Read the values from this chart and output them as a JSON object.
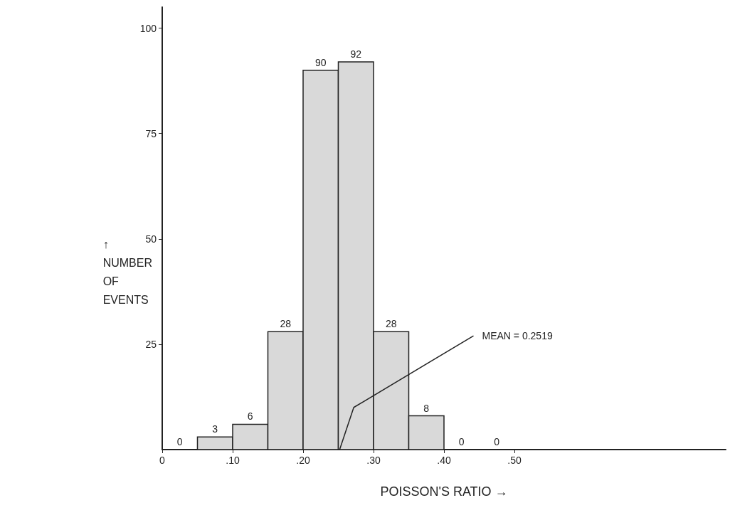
{
  "chart_data": {
    "type": "histogram",
    "xlabel": "POISSON'S RATIO →",
    "ylabel": "↑ NUMBER OF EVENTS",
    "bins": [
      0,
      0.05,
      0.1,
      0.15,
      0.2,
      0.25,
      0.3,
      0.35,
      0.4,
      0.45,
      0.5
    ],
    "values": [
      0,
      3,
      6,
      28,
      90,
      92,
      28,
      8,
      0,
      0
    ],
    "color": "#d9d9d9",
    "data_labels": true,
    "xlim": [
      0,
      0.8
    ],
    "xticks": [
      0,
      {
        "value": 0.1,
        "label": ".10"
      },
      {
        "value": 0.2,
        "label": ".20"
      },
      {
        "value": 0.3,
        "label": ".30"
      },
      {
        "value": 0.4,
        "label": ".40"
      },
      {
        "value": 0.5,
        "label": ".50"
      }
    ],
    "ylim": [
      0,
      105
    ],
    "yticks": [
      25,
      50,
      75,
      100
    ],
    "annotations": [
      {
        "text": "MEAN = 0.2519",
        "x": 0.2519,
        "y": 0
      }
    ],
    "grid": false
  }
}
